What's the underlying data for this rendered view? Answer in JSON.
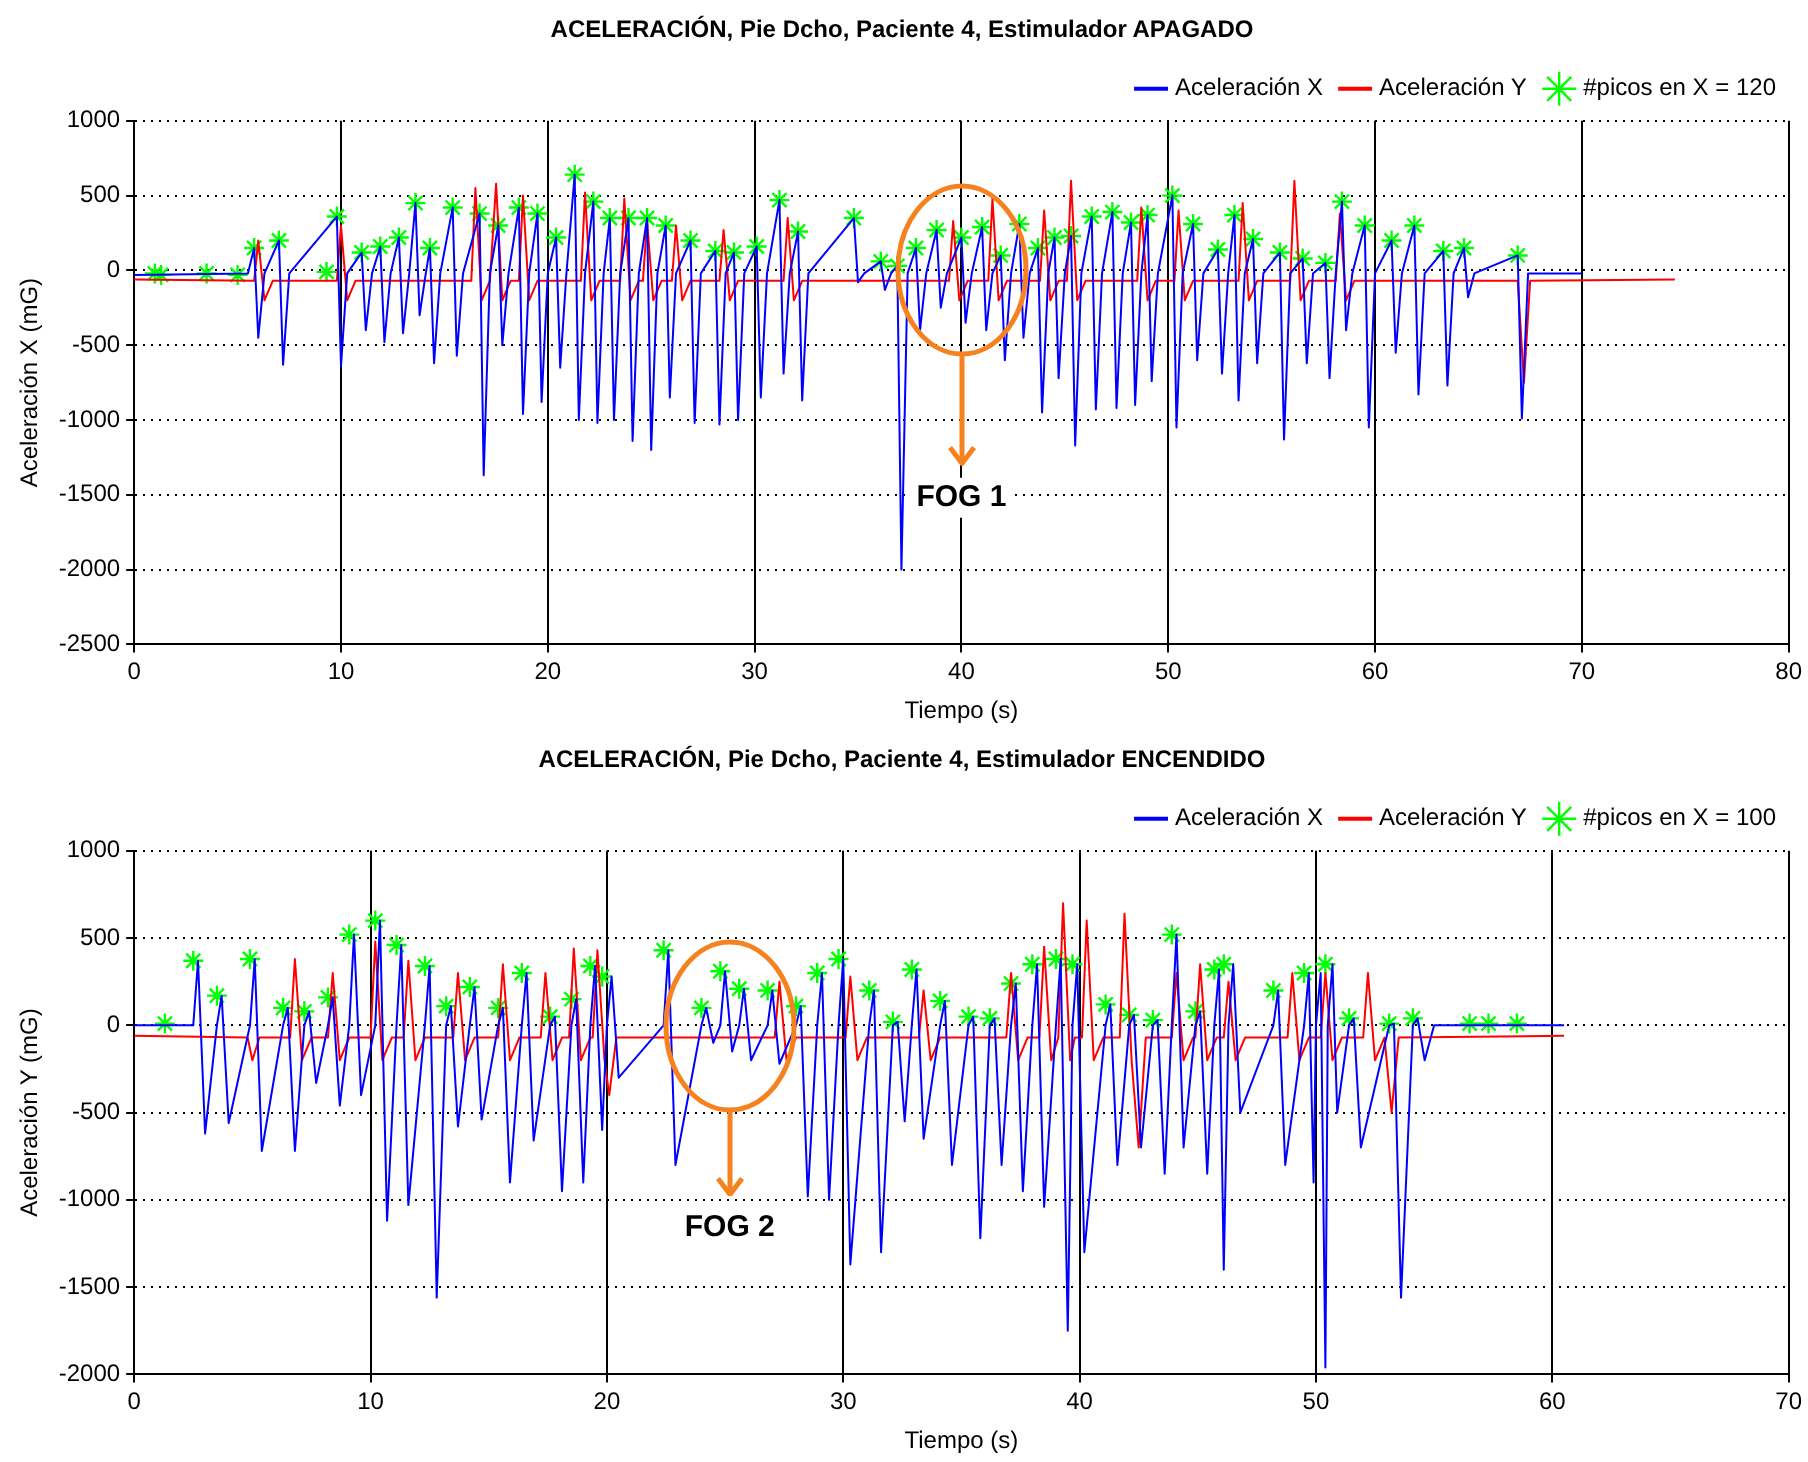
{
  "chart_data": [
    {
      "type": "line",
      "title": "ACELERACIÓN, Pie Dcho, Paciente 4, Estimulador APAGADO",
      "xlabel": "Tiempo (s)",
      "ylabel": "Aceleración X (mG)",
      "xlim": [
        0,
        80
      ],
      "xticks": [
        0,
        10,
        20,
        30,
        40,
        50,
        60,
        70,
        80
      ],
      "ylim": [
        -2500,
        1000
      ],
      "yticks": [
        -2500,
        -2000,
        -1500,
        -1000,
        -500,
        0,
        500,
        1000
      ],
      "grid": true,
      "legend": "top right",
      "line_style": "solid",
      "annotations": [
        "FOG 1"
      ],
      "series": [
        {
          "name": "Aceleración X",
          "color": "#0000ff",
          "marker": "none",
          "x": [
            0,
            5.5,
            5.8,
            6.0,
            6.3,
            7.0,
            7.2,
            7.5,
            9.8,
            10.0,
            10.3,
            11.0,
            11.2,
            11.5,
            11.9,
            12.1,
            12.4,
            12.8,
            13.0,
            13.3,
            13.6,
            13.8,
            14.1,
            14.3,
            14.5,
            14.8,
            15.4,
            15.6,
            15.9,
            16.7,
            16.9,
            17.2,
            17.6,
            17.8,
            18.1,
            18.6,
            18.8,
            19.1,
            19.5,
            19.7,
            20.0,
            20.4,
            20.6,
            20.9,
            21.3,
            21.5,
            21.8,
            22.2,
            22.4,
            22.7,
            23.0,
            23.2,
            23.5,
            23.9,
            24.1,
            24.4,
            24.8,
            25.0,
            25.3,
            25.7,
            25.9,
            26.2,
            26.9,
            27.1,
            27.4,
            28.1,
            28.3,
            28.6,
            29.0,
            29.2,
            29.5,
            30.1,
            30.3,
            30.6,
            31.2,
            31.4,
            31.7,
            32.1,
            32.3,
            32.6,
            34.8,
            35.0,
            35.3,
            36.1,
            36.3,
            36.6,
            36.9,
            37.1,
            37.4,
            37.8,
            38.0,
            38.3,
            38.8,
            39.0,
            39.3,
            40.0,
            40.2,
            40.5,
            41.0,
            41.2,
            41.5,
            41.9,
            42.1,
            42.4,
            42.8,
            43.0,
            43.3,
            43.7,
            43.9,
            44.2,
            44.5,
            44.7,
            45.0,
            45.3,
            45.5,
            45.8,
            46.3,
            46.5,
            46.8,
            47.3,
            47.5,
            47.8,
            48.2,
            48.4,
            48.7,
            49.0,
            49.2,
            49.5,
            50.2,
            50.4,
            50.7,
            51.2,
            51.4,
            51.7,
            52.4,
            52.6,
            52.9,
            53.2,
            53.4,
            53.7,
            54.1,
            54.3,
            54.6,
            55.4,
            55.6,
            55.9,
            56.5,
            56.7,
            57.0,
            57.6,
            57.8,
            58.1,
            58.4,
            58.6,
            58.9,
            59.5,
            59.7,
            60.0,
            60.8,
            61.0,
            61.3,
            61.9,
            62.1,
            62.4,
            63.3,
            63.5,
            63.8,
            64.3,
            64.5,
            64.8,
            66.9,
            67.1,
            67.4,
            70
          ],
          "values": [
            -30,
            -20,
            150,
            -450,
            -20,
            200,
            -630,
            -20,
            360,
            -640,
            -20,
            120,
            -400,
            -20,
            160,
            -480,
            -20,
            220,
            -420,
            -20,
            450,
            -300,
            -20,
            150,
            -620,
            -20,
            420,
            -570,
            -20,
            380,
            -1370,
            -20,
            300,
            -500,
            -20,
            420,
            -960,
            -20,
            380,
            -880,
            -20,
            220,
            -650,
            -20,
            640,
            -1000,
            -20,
            460,
            -1020,
            -20,
            350,
            -1000,
            -20,
            350,
            -1140,
            -20,
            350,
            -1200,
            -20,
            300,
            -850,
            -20,
            200,
            -1020,
            -20,
            130,
            -1030,
            -20,
            120,
            -1000,
            -20,
            160,
            -850,
            -20,
            470,
            -690,
            -20,
            260,
            -870,
            -20,
            350,
            -80,
            -20,
            60,
            -130,
            -20,
            30,
            -2000,
            -20,
            150,
            -400,
            -20,
            270,
            -250,
            -20,
            220,
            -350,
            -20,
            290,
            -400,
            -20,
            100,
            -600,
            -20,
            310,
            -450,
            -20,
            150,
            -950,
            -20,
            220,
            -720,
            -20,
            230,
            -1170,
            -20,
            360,
            -930,
            -20,
            390,
            -920,
            -20,
            320,
            -900,
            -20,
            370,
            -740,
            -20,
            500,
            -1050,
            -20,
            310,
            -600,
            -20,
            140,
            -690,
            -20,
            370,
            -870,
            -20,
            210,
            -620,
            -20,
            120,
            -1130,
            -20,
            80,
            -620,
            -20,
            50,
            -720,
            -20,
            460,
            -400,
            -20,
            300,
            -1050,
            -20,
            200,
            -550,
            -20,
            300,
            -830,
            -20,
            130,
            -770,
            -20,
            150,
            -180,
            -20,
            100,
            -990,
            -20,
            -20
          ]
        },
        {
          "name": "Aceleración Y",
          "color": "#ff0000",
          "marker": "none",
          "x": [
            0,
            5.8,
            6.0,
            6.3,
            6.7,
            9.8,
            10.0,
            10.3,
            10.7,
            16.3,
            16.5,
            16.8,
            17.2,
            17.5,
            17.8,
            18.2,
            18.6,
            18.8,
            19.1,
            19.5,
            21.6,
            21.8,
            22.1,
            22.5,
            23.5,
            23.7,
            24.0,
            24.4,
            24.6,
            24.8,
            25.1,
            25.5,
            26.0,
            26.2,
            26.5,
            26.9,
            28.3,
            28.5,
            28.8,
            29.2,
            31.4,
            31.6,
            31.9,
            32.3,
            39.4,
            39.6,
            39.9,
            40.3,
            41.3,
            41.5,
            41.8,
            42.2,
            43.8,
            44.0,
            44.3,
            44.7,
            45.1,
            45.3,
            45.6,
            46.0,
            48.5,
            48.7,
            49.0,
            49.4,
            50.3,
            50.5,
            50.8,
            51.2,
            53.4,
            53.6,
            53.9,
            54.3,
            55.9,
            56.1,
            56.4,
            56.8,
            58.1,
            58.3,
            58.6,
            59.0,
            66.9,
            67.2,
            67.5,
            74.5
          ],
          "values": [
            -60,
            -70,
            200,
            -200,
            -70,
            -70,
            300,
            -200,
            -70,
            -70,
            550,
            -200,
            -70,
            580,
            -200,
            -70,
            -70,
            500,
            -200,
            -70,
            -70,
            520,
            -200,
            -70,
            -70,
            480,
            -200,
            -70,
            -70,
            330,
            -200,
            -70,
            -70,
            300,
            -200,
            -70,
            -70,
            270,
            -200,
            -70,
            -70,
            350,
            -200,
            -70,
            -70,
            330,
            -200,
            -70,
            -70,
            480,
            -200,
            -70,
            -70,
            400,
            -200,
            -70,
            -70,
            600,
            -200,
            -70,
            -70,
            420,
            -200,
            -70,
            -70,
            400,
            -200,
            -70,
            -70,
            450,
            -200,
            -70,
            -70,
            600,
            -200,
            -70,
            -70,
            380,
            -200,
            -70,
            -70,
            -750,
            -70,
            -60
          ]
        },
        {
          "name": "#picos en X = 120",
          "color": "#00ff00",
          "type": "scatter",
          "marker": "cross",
          "x": [
            1,
            1.3,
            3.5,
            5,
            5.8,
            7.0,
            9.3,
            9.8,
            11.0,
            11.9,
            12.8,
            13.6,
            14.3,
            15.4,
            16.7,
            17.6,
            18.6,
            19.5,
            20.4,
            21.3,
            22.2,
            23.0,
            23.9,
            24.8,
            25.7,
            26.9,
            28.1,
            29.0,
            30.1,
            31.2,
            32.1,
            34.8,
            36.1,
            36.9,
            37.8,
            38.8,
            40.0,
            41.0,
            41.9,
            42.8,
            43.7,
            44.5,
            45.3,
            46.3,
            47.3,
            48.2,
            49.0,
            50.2,
            51.2,
            52.4,
            53.2,
            54.1,
            55.4,
            56.5,
            57.6,
            58.4,
            59.5,
            60.8,
            61.9,
            63.3,
            64.3,
            66.9
          ],
          "values": [
            -20,
            -30,
            -20,
            -30,
            150,
            200,
            -10,
            360,
            120,
            160,
            220,
            450,
            150,
            420,
            380,
            300,
            420,
            380,
            220,
            640,
            460,
            350,
            350,
            350,
            300,
            200,
            130,
            120,
            160,
            470,
            260,
            350,
            60,
            30,
            150,
            270,
            220,
            290,
            100,
            310,
            150,
            220,
            230,
            360,
            390,
            320,
            370,
            500,
            310,
            140,
            370,
            210,
            120,
            80,
            50,
            460,
            300,
            200,
            300,
            130,
            150,
            100
          ]
        }
      ]
    },
    {
      "type": "line",
      "title": "ACELERACIÓN, Pie Dcho, Paciente 4, Estimulador ENCENDIDO",
      "xlabel": "Tiempo (s)",
      "ylabel": "Aceleración Y (mG)",
      "xlim": [
        0,
        70
      ],
      "xticks": [
        0,
        10,
        20,
        30,
        40,
        50,
        60,
        70
      ],
      "ylim": [
        -2000,
        1000
      ],
      "yticks": [
        -2000,
        -1500,
        -1000,
        -500,
        0,
        500,
        1000
      ],
      "grid": true,
      "legend": "top right",
      "line_style": "solid",
      "annotations": [
        "FOG 2"
      ],
      "series": [
        {
          "name": "Aceleración X",
          "color": "#0000ff",
          "marker": "none",
          "x": [
            0,
            2.5,
            2.7,
            3.0,
            3.5,
            3.7,
            4.0,
            4.9,
            5.1,
            5.4,
            6.3,
            6.5,
            6.8,
            7.2,
            7.4,
            7.7,
            8.2,
            8.4,
            8.7,
            9.1,
            9.3,
            9.6,
            10.2,
            10.4,
            10.7,
            11.1,
            11.3,
            11.6,
            12.3,
            12.5,
            12.8,
            13.2,
            13.4,
            13.7,
            14.2,
            14.4,
            14.7,
            15.4,
            15.6,
            15.9,
            16.4,
            16.6,
            16.9,
            17.6,
            17.8,
            18.1,
            18.5,
            18.7,
            19.0,
            19.3,
            19.5,
            19.8,
            20.0,
            20.2,
            20.5,
            22.4,
            22.6,
            22.9,
            24.0,
            24.2,
            24.5,
            24.8,
            25.0,
            25.3,
            25.6,
            25.8,
            26.1,
            26.8,
            27.0,
            27.3,
            28.0,
            28.2,
            28.5,
            28.9,
            29.1,
            29.4,
            29.8,
            30.0,
            30.3,
            31.1,
            31.3,
            31.6,
            32.1,
            32.3,
            32.6,
            32.9,
            33.1,
            33.4,
            34.1,
            34.3,
            34.6,
            35.3,
            35.5,
            35.8,
            36.2,
            36.4,
            36.7,
            37.1,
            37.3,
            37.6,
            38.0,
            38.2,
            38.5,
            39.0,
            39.2,
            39.5,
            39.7,
            39.9,
            40.2,
            41.1,
            41.3,
            41.6,
            42.1,
            42.3,
            42.6,
            43.1,
            43.3,
            43.6,
            43.9,
            44.1,
            44.4,
            44.9,
            45.1,
            45.4,
            45.7,
            45.9,
            46.1,
            46.3,
            46.5,
            46.8,
            48.2,
            48.4,
            48.7,
            49.5,
            49.7,
            49.9,
            50.0,
            50.2,
            50.4,
            50.5,
            50.7,
            50.9,
            51.4,
            51.6,
            51.9,
            53.1,
            53.3,
            53.6,
            54.1,
            54.3,
            54.6,
            55,
            60.5
          ],
          "values": [
            0,
            0,
            370,
            -620,
            0,
            170,
            -560,
            0,
            380,
            -720,
            0,
            100,
            -720,
            0,
            80,
            -330,
            0,
            160,
            -460,
            0,
            520,
            -400,
            0,
            600,
            -1120,
            0,
            460,
            -1030,
            0,
            340,
            -1560,
            0,
            110,
            -580,
            0,
            220,
            -540,
            0,
            100,
            -900,
            0,
            300,
            -660,
            0,
            50,
            -950,
            0,
            150,
            -900,
            0,
            340,
            -600,
            0,
            280,
            -300,
            0,
            430,
            -800,
            0,
            100,
            -100,
            0,
            310,
            -150,
            0,
            210,
            -200,
            0,
            200,
            -220,
            0,
            110,
            -980,
            0,
            300,
            -1000,
            0,
            380,
            -1370,
            0,
            200,
            -1300,
            0,
            20,
            -550,
            0,
            320,
            -650,
            0,
            140,
            -800,
            0,
            50,
            -1220,
            0,
            40,
            -800,
            0,
            240,
            -950,
            0,
            350,
            -1040,
            0,
            380,
            -1750,
            0,
            350,
            -1300,
            0,
            120,
            -800,
            0,
            60,
            -700,
            0,
            30,
            -850,
            0,
            520,
            -700,
            0,
            80,
            -850,
            0,
            320,
            -1400,
            0,
            350,
            -500,
            0,
            200,
            -800,
            0,
            300,
            -900,
            0,
            300,
            -1960,
            0,
            350,
            -500,
            0,
            40,
            -700,
            0,
            10,
            -1560,
            0,
            40,
            -200,
            0,
            0
          ]
        },
        {
          "name": "Aceleración Y",
          "color": "#ff0000",
          "marker": "none",
          "x": [
            0,
            4.8,
            5.0,
            5.3,
            6.6,
            6.8,
            7.1,
            7.5,
            8.2,
            8.4,
            8.7,
            9.1,
            10.0,
            10.2,
            10.5,
            10.9,
            11.4,
            11.6,
            11.9,
            12.3,
            13.5,
            13.7,
            14.0,
            14.4,
            15.4,
            15.6,
            15.9,
            16.3,
            17.2,
            17.4,
            17.7,
            18.1,
            18.4,
            18.6,
            18.9,
            19.3,
            19.4,
            19.6,
            19.9,
            20.1,
            20.4,
            27.1,
            27.3,
            27.6,
            28.0,
            30.1,
            30.3,
            30.6,
            31.0,
            33.2,
            33.4,
            33.7,
            34.1,
            36.9,
            37.1,
            37.4,
            37.8,
            38.3,
            38.5,
            38.8,
            39.1,
            39.3,
            39.6,
            39.8,
            40.1,
            40.3,
            40.6,
            41.0,
            41.7,
            41.9,
            42.2,
            42.5,
            42.8,
            43.9,
            44.1,
            44.4,
            44.8,
            44.9,
            45.1,
            45.4,
            45.8,
            46.1,
            46.3,
            46.6,
            47.0,
            48.8,
            49.0,
            49.3,
            49.7,
            50.2,
            50.4,
            50.7,
            51.1,
            52.0,
            52.2,
            52.5,
            52.9,
            53.2,
            53.5,
            60.5
          ],
          "values": [
            -60,
            -70,
            -200,
            -70,
            -70,
            380,
            -200,
            -70,
            -70,
            300,
            -200,
            -70,
            -70,
            480,
            -200,
            -70,
            -70,
            370,
            -200,
            -70,
            -70,
            300,
            -200,
            -70,
            -70,
            350,
            -200,
            -70,
            -70,
            300,
            -200,
            -70,
            -70,
            440,
            -200,
            -70,
            -70,
            430,
            -200,
            -400,
            -70,
            -70,
            250,
            -200,
            -70,
            -70,
            280,
            -200,
            -70,
            -70,
            200,
            -200,
            -70,
            -70,
            300,
            -200,
            -70,
            -70,
            450,
            -200,
            -70,
            700,
            -200,
            -70,
            -70,
            600,
            -200,
            -70,
            -70,
            640,
            -200,
            -700,
            -70,
            -70,
            300,
            -200,
            -70,
            -70,
            350,
            -200,
            -70,
            -70,
            250,
            -200,
            -70,
            -70,
            300,
            -200,
            -70,
            -70,
            300,
            -200,
            -70,
            -70,
            300,
            -200,
            -70,
            -500,
            -70,
            -60
          ]
        },
        {
          "name": "#picos en X = 100",
          "color": "#00ff00",
          "type": "scatter",
          "marker": "cross",
          "x": [
            1.3,
            2.5,
            3.5,
            4.9,
            6.3,
            7.2,
            8.2,
            9.1,
            10.2,
            11.1,
            12.3,
            13.2,
            14.2,
            15.4,
            16.4,
            17.6,
            18.5,
            19.3,
            19.8,
            22.4,
            24.0,
            24.8,
            25.6,
            26.8,
            28.0,
            28.9,
            29.8,
            31.1,
            32.1,
            32.9,
            34.1,
            35.3,
            36.2,
            37.1,
            38.0,
            39.0,
            39.7,
            41.1,
            42.1,
            43.1,
            43.9,
            44.9,
            45.7,
            46.1,
            48.2,
            49.5,
            50.4,
            51.4,
            53.1,
            54.1,
            56.5,
            57.3,
            58.5
          ],
          "values": [
            10,
            370,
            170,
            380,
            100,
            80,
            160,
            520,
            600,
            460,
            340,
            110,
            220,
            100,
            300,
            50,
            150,
            340,
            280,
            430,
            100,
            310,
            210,
            200,
            110,
            300,
            380,
            200,
            20,
            320,
            140,
            50,
            40,
            240,
            350,
            380,
            350,
            120,
            60,
            30,
            520,
            80,
            320,
            350,
            200,
            300,
            350,
            40,
            10,
            40,
            10,
            10,
            10
          ]
        }
      ]
    }
  ]
}
